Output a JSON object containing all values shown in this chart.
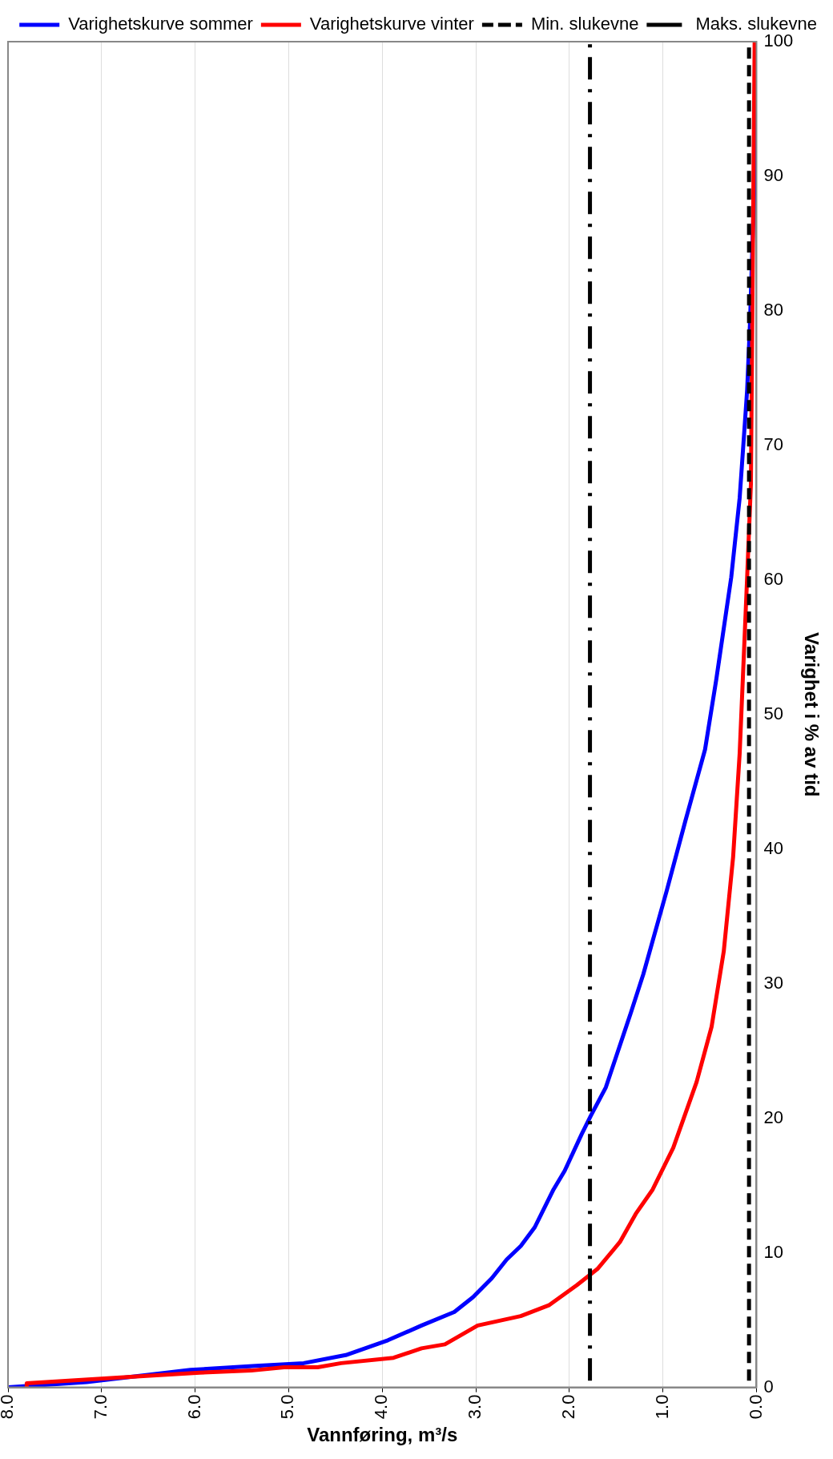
{
  "chart_data": {
    "type": "line",
    "xlabel": "Vannføring, m³/s",
    "ylabel": "Varighet i % av tid",
    "xlim": [
      8,
      0
    ],
    "xticks": [
      {
        "value": 8,
        "label": "8.0"
      },
      {
        "value": 7,
        "label": "7.0"
      },
      {
        "value": 6,
        "label": "6.0"
      },
      {
        "value": 5,
        "label": "5.0"
      },
      {
        "value": 4,
        "label": "4.0"
      },
      {
        "value": 3,
        "label": "3.0"
      },
      {
        "value": 2,
        "label": "2.0"
      },
      {
        "value": 1,
        "label": "1.0"
      },
      {
        "value": 0,
        "label": "0.0"
      }
    ],
    "ylim": [
      0,
      100
    ],
    "yticks": [
      0,
      10,
      20,
      30,
      40,
      50,
      60,
      70,
      80,
      90,
      100
    ],
    "grid": "x",
    "legend": "top right",
    "marker": "none",
    "series": [
      {
        "name": "Varighetskurve sommer",
        "color": "#0000ff",
        "line_style": "solid",
        "values": [
          0,
          0.4,
          1.3,
          1.6,
          1.8,
          2.4,
          3.5,
          4.6,
          5.6,
          6.7,
          8.1,
          9.5,
          10.5,
          11.9,
          14.7,
          16.1,
          18.8,
          20.2,
          22.3,
          27.9,
          30.7,
          36.9,
          42.1,
          47.4,
          52.6,
          60.2,
          66.1,
          74.1,
          79,
          90,
          100
        ],
        "x": [
          8.0,
          7.16,
          6.05,
          5.35,
          4.84,
          4.39,
          3.94,
          3.58,
          3.23,
          3.03,
          2.83,
          2.67,
          2.52,
          2.37,
          2.17,
          2.05,
          1.87,
          1.77,
          1.61,
          1.34,
          1.21,
          0.96,
          0.76,
          0.55,
          0.43,
          0.27,
          0.18,
          0.1,
          0.07,
          0.02,
          0.0
        ]
      },
      {
        "name": "Varighetskurve vinter",
        "color": "#ff0000",
        "line_style": "solid",
        "values": [
          0,
          0.3,
          0.8,
          1.1,
          1.25,
          1.5,
          1.5,
          1.8,
          2.2,
          2.9,
          3.2,
          4.6,
          5.3,
          6.1,
          7.6,
          8.8,
          10.8,
          12.9,
          14.7,
          17.8,
          22.7,
          26.8,
          32.4,
          39.4,
          47.1,
          60.2,
          67.1,
          100
        ],
        "x": [
          7.8,
          7.8,
          6.66,
          5.95,
          5.4,
          5.05,
          4.69,
          4.44,
          3.88,
          3.58,
          3.33,
          2.98,
          2.52,
          2.22,
          1.92,
          1.7,
          1.46,
          1.29,
          1.11,
          0.89,
          0.64,
          0.48,
          0.35,
          0.25,
          0.18,
          0.1,
          0.06,
          0.02
        ]
      },
      {
        "name": "Min. slukevne",
        "color": "#000000",
        "line_style": "dashed",
        "values": [
          0.5,
          100
        ],
        "x": [
          0.08,
          0.08
        ]
      },
      {
        "name": "Maks. slukevne",
        "color": "#000000",
        "line_style": "dashdot",
        "values": [
          0.5,
          100
        ],
        "x": [
          1.78,
          1.78
        ]
      }
    ]
  }
}
